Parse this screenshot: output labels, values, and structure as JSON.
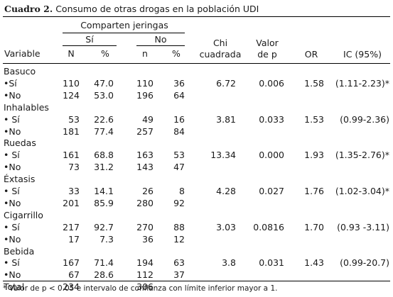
{
  "title": {
    "label": "Cuadro 2.",
    "text": "Consumo de otras drogas en la población UDI"
  },
  "header": {
    "group": "Comparten jeringas",
    "si": "Sí",
    "no": "No",
    "variable": "Variable",
    "N": "N",
    "pct1": "%",
    "n": "n",
    "pct2": "%",
    "chi1": "Chi",
    "chi2": "cuadrada",
    "valor1": "Valor",
    "valor2": "de p",
    "or": "OR",
    "ic": "IC (95%)"
  },
  "rows": [
    {
      "variable": "Basuco"
    },
    {
      "variable": "•Sí",
      "N": "110",
      "pct1": "47.0",
      "n": "110",
      "pct2": "36",
      "chi": "6.72",
      "p": "0.006",
      "or": "1.58",
      "ic": "(1.11-2.23)*"
    },
    {
      "variable": "•No",
      "N": "124",
      "pct1": "53.0",
      "n": "196",
      "pct2": "64"
    },
    {
      "variable": "Inhalables"
    },
    {
      "variable": "• Sí",
      "N": "53",
      "pct1": "22.6",
      "n": "49",
      "pct2": "16",
      "chi": "3.81",
      "p": "0.033",
      "or": "1.53",
      "ic": "(0.99-2.36)"
    },
    {
      "variable": "•No",
      "N": "181",
      "pct1": "77.4",
      "n": "257",
      "pct2": "84"
    },
    {
      "variable": "Ruedas"
    },
    {
      "variable": "• Sí",
      "N": "161",
      "pct1": "68.8",
      "n": "163",
      "pct2": "53",
      "chi": "13.34",
      "p": "0.000",
      "or": "1.93",
      "ic": "(1.35-2.76)*"
    },
    {
      "variable": "•No",
      "N": "73",
      "pct1": "31.2",
      "n": "143",
      "pct2": "47"
    },
    {
      "variable": "Éxtasis"
    },
    {
      "variable": "• Sí",
      "N": "33",
      "pct1": "14.1",
      "n": "26",
      "pct2": "8",
      "chi": "4.28",
      "p": "0.027",
      "or": "1.76",
      "ic": "(1.02-3.04)*"
    },
    {
      "variable": "•No",
      "N": "201",
      "pct1": "85.9",
      "n": "280",
      "pct2": "92"
    },
    {
      "variable": "Cigarrillo"
    },
    {
      "variable": "• Sí",
      "N": "217",
      "pct1": "92.7",
      "n": "270",
      "pct2": "88",
      "chi": "3.03",
      "p": "0.0816",
      "or": "1.70",
      "ic": "(0.93 -3.11)"
    },
    {
      "variable": "•No",
      "N": "17",
      "pct1": "7.3",
      "n": "36",
      "pct2": "12"
    },
    {
      "variable": "Bebida"
    },
    {
      "variable": "• Sí",
      "N": "167",
      "pct1": "71.4",
      "n": "194",
      "pct2": "63",
      "chi": "3.8",
      "p": "0.031",
      "or": "1.43",
      "ic": "(0.99-20.7)"
    },
    {
      "variable": "•No",
      "N": "67",
      "pct1": "28.6",
      "n": "112",
      "pct2": "37"
    },
    {
      "variable": "Total",
      "N": "234",
      "n": "306"
    }
  ],
  "footnote": "* Valor de p < 0.05 e intervalo de confianza con límite inferior mayor a 1."
}
